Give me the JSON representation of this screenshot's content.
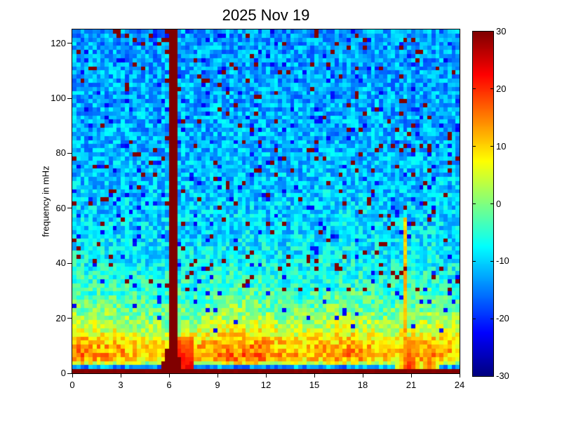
{
  "figure": {
    "background": "#ffffff"
  },
  "chart_data": {
    "type": "heatmap",
    "subtype": "spectrogram",
    "title": "2025 Nov 19",
    "xlabel": "",
    "ylabel": "frequency in mHz",
    "xlim": [
      0,
      24
    ],
    "ylim": [
      0,
      125
    ],
    "clim_db": [
      -30,
      30
    ],
    "x_ticks": [
      0,
      3,
      6,
      9,
      12,
      15,
      18,
      21,
      24
    ],
    "y_ticks": [
      0,
      20,
      40,
      60,
      80,
      100,
      120
    ],
    "colorbar": {
      "min": -30,
      "max": 30,
      "ticks": [
        30,
        20,
        10,
        0,
        -10,
        -20,
        -30
      ],
      "colormap": "jet",
      "position": "right"
    },
    "grid": {
      "cols": 96,
      "rows": 84
    },
    "seed": 20251119,
    "noise_db": 5.5,
    "background_profile_mhz_db": [
      [
        0,
        30
      ],
      [
        1.4,
        30
      ],
      [
        1.6,
        -15
      ],
      [
        2.8,
        -12
      ],
      [
        4,
        4
      ],
      [
        6,
        9
      ],
      [
        10,
        8
      ],
      [
        15,
        3
      ],
      [
        20,
        -1
      ],
      [
        28,
        -5
      ],
      [
        38,
        -8
      ],
      [
        50,
        -10
      ],
      [
        70,
        -11.5
      ],
      [
        125,
        -13.5
      ]
    ],
    "diurnal_peaks": [
      {
        "t": 0.4,
        "sigma": 0.7,
        "amp": 6
      },
      {
        "t": 2.5,
        "sigma": 1.2,
        "amp": 5
      },
      {
        "t": 10.5,
        "sigma": 2.2,
        "amp": 8
      },
      {
        "t": 17.0,
        "sigma": 1.5,
        "amp": 6
      },
      {
        "t": 22.0,
        "sigma": 1.2,
        "amp": 6
      }
    ],
    "diurnal_freq_decay_mhz": 22,
    "speckles": {
      "hot_fraction": 0.045,
      "hot_db": 30,
      "hot_min_freq_mhz": 30,
      "cold_fraction": 0.04,
      "cold_db": -22,
      "cold_min_freq_mhz": 15
    },
    "features": [
      {
        "name": "main-spike",
        "t": 6.15,
        "db": 30,
        "halfwidth_h": 0.26,
        "flare_below_mhz": 10,
        "flare_h_per_mhz": 0.045,
        "f_max": 125
      },
      {
        "name": "main-spike-skirt",
        "t_range": [
          6.3,
          7.4
        ],
        "f_max": 14,
        "db": 24,
        "db_slope_per_mhz": -0.6
      },
      {
        "name": "secondary-spike",
        "t": 20.65,
        "halfwidth_h": 0.15,
        "f_max": 57,
        "db": 13,
        "db_slope_per_mhz": -0.05
      },
      {
        "name": "evening-blob-1",
        "t": 20.9,
        "sigma": 0.45,
        "f_max": 13,
        "db": 21,
        "db_slope_per_mhz": -0.6
      },
      {
        "name": "evening-blob-2",
        "t": 22.15,
        "sigma": 0.35,
        "f_max": 10,
        "db": 18,
        "db_slope_per_mhz": -0.6
      }
    ]
  }
}
